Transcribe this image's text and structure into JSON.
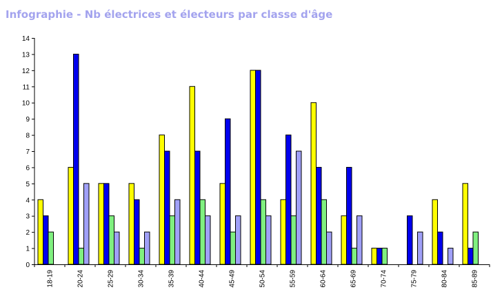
{
  "chart_data": {
    "type": "bar",
    "title": "Infographie - Nb électrices et électeurs par classe d'âge",
    "xlabel": "",
    "ylabel": "",
    "ylim": [
      0,
      14
    ],
    "yticks": [
      0,
      1,
      2,
      3,
      4,
      5,
      6,
      7,
      8,
      9,
      10,
      11,
      12,
      13,
      14
    ],
    "grid": false,
    "categories": [
      "18-19",
      "20-24",
      "25-29",
      "30-34",
      "35-39",
      "40-44",
      "45-49",
      "50-54",
      "55-59",
      "60-64",
      "65-69",
      "70-74",
      "75-79",
      "80-84",
      "85-89"
    ],
    "series": [
      {
        "color": "#ffff00",
        "values": [
          4,
          6,
          5,
          5,
          8,
          11,
          5,
          12,
          4,
          10,
          3,
          1,
          0,
          4,
          5
        ]
      },
      {
        "color": "#0000ee",
        "values": [
          3,
          13,
          5,
          4,
          7,
          7,
          9,
          12,
          8,
          6,
          6,
          1,
          3,
          2,
          1
        ]
      },
      {
        "color": "#80f080",
        "values": [
          2,
          1,
          3,
          1,
          3,
          4,
          2,
          4,
          3,
          4,
          1,
          1,
          0,
          0,
          2
        ]
      },
      {
        "color": "#a0a0f8",
        "values": [
          0,
          5,
          2,
          2,
          4,
          3,
          3,
          3,
          7,
          2,
          3,
          0,
          2,
          1,
          0
        ]
      }
    ]
  }
}
